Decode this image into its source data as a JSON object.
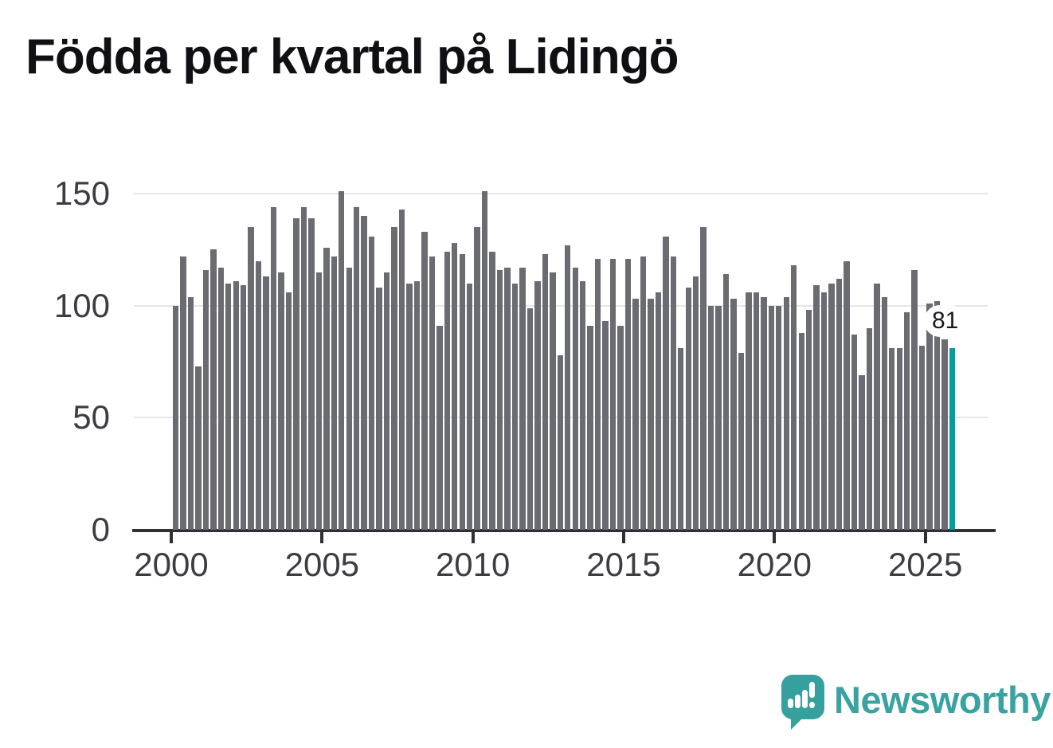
{
  "title": "Födda per kvartal på Lidingö",
  "chart_data": {
    "type": "bar",
    "title": "Födda per kvartal på Lidingö",
    "xlabel": "",
    "ylabel": "",
    "ylim": [
      0,
      150
    ],
    "grid": "horizontal gridlines at 0, 50, 100, 150",
    "legend": "none",
    "bar_color": "#6b6b72",
    "highlight_color": "#009f9f",
    "y_tick_labels": [
      "0",
      "50",
      "100",
      "150"
    ],
    "y_tick_values": [
      0,
      50,
      100,
      150
    ],
    "x_tick_labels": [
      "2000",
      "2005",
      "2010",
      "2015",
      "2020",
      "2025"
    ],
    "highlight_index": 103,
    "highlight_label": "81",
    "categories": [
      "2000 Q1",
      "2000 Q2",
      "2000 Q3",
      "2000 Q4",
      "2001 Q1",
      "2001 Q2",
      "2001 Q3",
      "2001 Q4",
      "2002 Q1",
      "2002 Q2",
      "2002 Q3",
      "2002 Q4",
      "2003 Q1",
      "2003 Q2",
      "2003 Q3",
      "2003 Q4",
      "2004 Q1",
      "2004 Q2",
      "2004 Q3",
      "2004 Q4",
      "2005 Q1",
      "2005 Q2",
      "2005 Q3",
      "2005 Q4",
      "2006 Q1",
      "2006 Q2",
      "2006 Q3",
      "2006 Q4",
      "2007 Q1",
      "2007 Q2",
      "2007 Q3",
      "2007 Q4",
      "2008 Q1",
      "2008 Q2",
      "2008 Q3",
      "2008 Q4",
      "2009 Q1",
      "2009 Q2",
      "2009 Q3",
      "2009 Q4",
      "2010 Q1",
      "2010 Q2",
      "2010 Q3",
      "2010 Q4",
      "2011 Q1",
      "2011 Q2",
      "2011 Q3",
      "2011 Q4",
      "2012 Q1",
      "2012 Q2",
      "2012 Q3",
      "2012 Q4",
      "2013 Q1",
      "2013 Q2",
      "2013 Q3",
      "2013 Q4",
      "2014 Q1",
      "2014 Q2",
      "2014 Q3",
      "2014 Q4",
      "2015 Q1",
      "2015 Q2",
      "2015 Q3",
      "2015 Q4",
      "2016 Q1",
      "2016 Q2",
      "2016 Q3",
      "2016 Q4",
      "2017 Q1",
      "2017 Q2",
      "2017 Q3",
      "2017 Q4",
      "2018 Q1",
      "2018 Q2",
      "2018 Q3",
      "2018 Q4",
      "2019 Q1",
      "2019 Q2",
      "2019 Q3",
      "2019 Q4",
      "2020 Q1",
      "2020 Q2",
      "2020 Q3",
      "2020 Q4",
      "2021 Q1",
      "2021 Q2",
      "2021 Q3",
      "2021 Q4",
      "2022 Q1",
      "2022 Q2",
      "2022 Q3",
      "2022 Q4",
      "2023 Q1",
      "2023 Q2",
      "2023 Q3",
      "2023 Q4",
      "2024 Q1",
      "2024 Q2",
      "2024 Q3",
      "2024 Q4",
      "2025 Q1",
      "2025 Q2",
      "2025 Q3",
      "2025 Q4"
    ],
    "values": [
      100,
      122,
      104,
      73,
      116,
      125,
      117,
      110,
      111,
      109,
      135,
      120,
      113,
      144,
      115,
      106,
      139,
      144,
      139,
      115,
      126,
      122,
      151,
      117,
      144,
      140,
      131,
      108,
      115,
      135,
      143,
      110,
      111,
      133,
      122,
      91,
      124,
      128,
      123,
      110,
      135,
      151,
      124,
      116,
      117,
      110,
      117,
      99,
      111,
      123,
      115,
      78,
      127,
      117,
      111,
      91,
      121,
      93,
      121,
      91,
      121,
      103,
      122,
      103,
      106,
      131,
      122,
      81,
      108,
      113,
      135,
      100,
      100,
      114,
      103,
      79,
      106,
      106,
      104,
      100,
      100,
      104,
      118,
      88,
      98,
      109,
      106,
      110,
      112,
      120,
      87,
      69,
      90,
      110,
      104,
      81,
      81,
      97,
      116,
      82,
      101,
      102,
      85,
      81
    ]
  },
  "branding": {
    "name": "Newsworthy",
    "icon": "newsworthy-speech-bubble-chart-icon",
    "text_color": "#3aa3a1",
    "icon_color": "#35a09e"
  }
}
